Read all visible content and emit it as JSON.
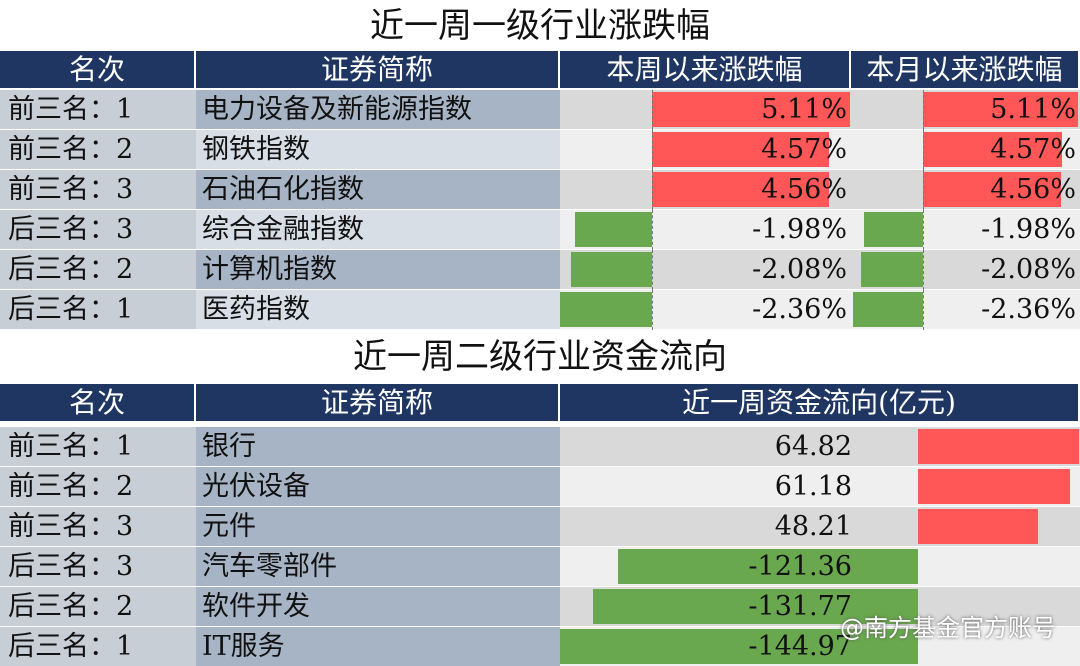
{
  "table1": {
    "title": "近一周一级行业涨跌幅",
    "headers": [
      "名次",
      "证券简称",
      "本周以来涨跌幅",
      "本月以来涨跌幅"
    ],
    "rows": [
      {
        "rank": "前三名：1",
        "name": "电力设备及新能源指数",
        "week_label": "5.11%",
        "month_label": "5.11%"
      },
      {
        "rank": "前三名：2",
        "name": "钢铁指数",
        "week_label": "4.57%",
        "month_label": "4.57%"
      },
      {
        "rank": "前三名：3",
        "name": "石油石化指数",
        "week_label": "4.56%",
        "month_label": "4.56%"
      },
      {
        "rank": "后三名：3",
        "name": "综合金融指数",
        "week_label": "-1.98%",
        "month_label": "-1.98%"
      },
      {
        "rank": "后三名：2",
        "name": "计算机指数",
        "week_label": "-2.08%",
        "month_label": "-2.08%"
      },
      {
        "rank": "后三名：1",
        "name": "医药指数",
        "week_label": "-2.36%",
        "month_label": "-2.36%"
      }
    ]
  },
  "table2": {
    "title": "近一周二级行业资金流向",
    "headers": [
      "名次",
      "证券简称",
      "近一周资金流向(亿元)"
    ],
    "rows": [
      {
        "rank": "前三名：1",
        "name": "银行",
        "flow_label": "64.82"
      },
      {
        "rank": "前三名：2",
        "name": "光伏设备",
        "flow_label": "61.18"
      },
      {
        "rank": "前三名：3",
        "name": "元件",
        "flow_label": "48.21"
      },
      {
        "rank": "后三名：3",
        "name": "汽车零部件",
        "flow_label": "-121.36"
      },
      {
        "rank": "后三名：2",
        "name": "软件开发",
        "flow_label": "-131.77"
      },
      {
        "rank": "后三名：1",
        "name": "IT服务",
        "flow_label": "-144.97"
      }
    ]
  },
  "watermark": "@南方基金官方账号",
  "colors": {
    "positive": "#ff5757",
    "negative": "#6aa84f",
    "header": "#1f3663"
  },
  "chart_data": [
    {
      "type": "bar",
      "title": "近一周一级行业涨跌幅",
      "categories": [
        "电力设备及新能源指数",
        "钢铁指数",
        "石油石化指数",
        "综合金融指数",
        "计算机指数",
        "医药指数"
      ],
      "series": [
        {
          "name": "本周以来涨跌幅",
          "values": [
            5.11,
            4.57,
            4.56,
            -1.98,
            -2.08,
            -2.36
          ]
        },
        {
          "name": "本月以来涨跌幅",
          "values": [
            5.11,
            4.57,
            4.56,
            -1.98,
            -2.08,
            -2.36
          ]
        }
      ]
    },
    {
      "type": "bar",
      "title": "近一周二级行业资金流向",
      "categories": [
        "银行",
        "光伏设备",
        "元件",
        "汽车零部件",
        "软件开发",
        "IT服务"
      ],
      "series": [
        {
          "name": "近一周资金流向(亿元)",
          "values": [
            64.82,
            61.18,
            48.21,
            -121.36,
            -131.77,
            -144.97
          ]
        }
      ]
    }
  ]
}
